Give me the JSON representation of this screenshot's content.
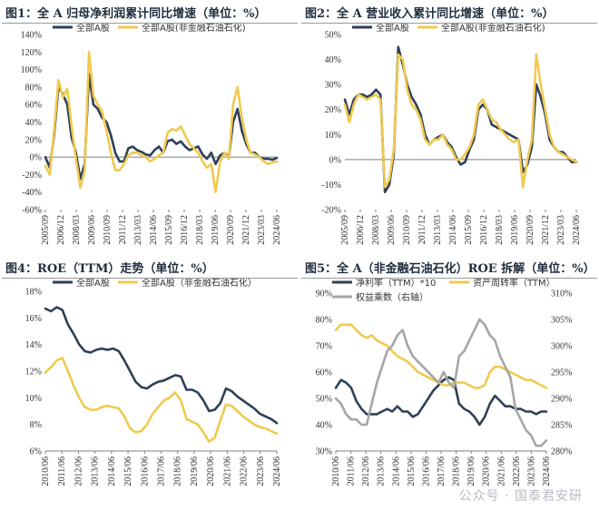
{
  "colors": {
    "dark": "#2e4057",
    "gold": "#f0c94f",
    "gray": "#a6a6a6"
  },
  "watermark": "公众号 · 国泰君安研",
  "charts": [
    {
      "title": "图1：全 A 归母净利润累计同比增速（单位：%）",
      "chart_data": {
        "type": "line",
        "x_ticks": [
          "2005/09",
          "2006/12",
          "2008/03",
          "2009/06",
          "2010/09",
          "2011/12",
          "2013/03",
          "2014/06",
          "2015/09",
          "2016/12",
          "2018/03",
          "2019/06",
          "2020/09",
          "2021/12",
          "2023/03",
          "2024/06"
        ],
        "ylim": [
          -60,
          140
        ],
        "y_ticks": [
          -60,
          -40,
          -20,
          0,
          20,
          40,
          60,
          80,
          100,
          120,
          140
        ],
        "y_format": "percent",
        "series": [
          {
            "name": "全部A股",
            "color": "#2e4057",
            "values": [
              0,
              -12,
              25,
              80,
              72,
              60,
              22,
              5,
              -25,
              -8,
              95,
              60,
              55,
              45,
              40,
              25,
              5,
              -5,
              -5,
              10,
              12,
              8,
              6,
              3,
              2,
              8,
              12,
              5,
              18,
              20,
              15,
              18,
              12,
              8,
              10,
              12,
              3,
              -2,
              5,
              -8,
              2,
              5,
              0,
              40,
              55,
              30,
              15,
              5,
              5,
              0,
              -2,
              -2,
              -3,
              -1
            ]
          },
          {
            "name": "全部A股(非金融石油石化)",
            "color": "#f0c94f",
            "values": [
              -10,
              -20,
              30,
              88,
              68,
              78,
              35,
              -2,
              -35,
              -15,
              120,
              70,
              60,
              52,
              30,
              5,
              -15,
              -15,
              -8,
              2,
              5,
              5,
              2,
              0,
              -5,
              -2,
              2,
              5,
              28,
              32,
              30,
              35,
              25,
              15,
              10,
              5,
              -5,
              -12,
              -8,
              -40,
              -5,
              5,
              -2,
              60,
              80,
              45,
              20,
              5,
              3,
              0,
              -5,
              -8,
              -6,
              -5
            ]
          }
        ]
      }
    },
    {
      "title": "图2：全 A 营业收入累计同比增速（单位：%）",
      "chart_data": {
        "type": "line",
        "x_ticks": [
          "2005/09",
          "2006/12",
          "2008/03",
          "2009/06",
          "2010/09",
          "2011/12",
          "2013/03",
          "2014/06",
          "2015/09",
          "2016/12",
          "2018/03",
          "2019/06",
          "2020/09",
          "2021/12",
          "2023/03",
          "2024/06"
        ],
        "ylim": [
          -20,
          50
        ],
        "y_ticks": [
          -20,
          -10,
          0,
          10,
          20,
          30,
          40,
          50
        ],
        "y_format": "percent",
        "series": [
          {
            "name": "全部A股",
            "color": "#2e4057",
            "values": [
              24,
              18,
              24,
              26,
              26,
              25,
              26,
              28,
              26,
              -13,
              -10,
              2,
              45,
              38,
              30,
              25,
              22,
              18,
              10,
              6,
              8,
              9,
              10,
              7,
              5,
              1,
              -2,
              -1,
              4,
              8,
              20,
              22,
              20,
              14,
              13,
              12,
              11,
              10,
              9,
              8,
              -5,
              -2,
              5,
              30,
              25,
              18,
              8,
              5,
              3,
              3,
              1,
              -1,
              -1
            ]
          },
          {
            "name": "全部A股(非金融石油石化)",
            "color": "#f0c94f",
            "values": [
              22,
              15,
              22,
              26,
              25,
              24,
              25,
              26,
              24,
              -11,
              -8,
              4,
              42,
              40,
              28,
              22,
              20,
              16,
              8,
              6,
              8,
              8,
              10,
              6,
              4,
              0,
              0,
              2,
              5,
              10,
              22,
              24,
              20,
              16,
              15,
              12,
              10,
              8,
              7,
              8,
              -11,
              0,
              8,
              42,
              30,
              20,
              10,
              5,
              3,
              2,
              1,
              0,
              -1
            ]
          }
        ]
      }
    },
    {
      "title": "图4：ROE（TTM）走势（单位：%）",
      "chart_data": {
        "type": "line",
        "x_ticks": [
          "2010/06",
          "2011/06",
          "2012/06",
          "2013/06",
          "2014/06",
          "2015/06",
          "2016/06",
          "2017/06",
          "2018/06",
          "2019/06",
          "2020/06",
          "2021/06",
          "2022/06",
          "2023/06",
          "2024/06"
        ],
        "ylim": [
          6,
          18
        ],
        "y_ticks": [
          6,
          8,
          10,
          12,
          14,
          16,
          18
        ],
        "y_format": "percent",
        "series": [
          {
            "name": "全部A股",
            "color": "#2e4057",
            "values": [
              16.7,
              16.5,
              16.8,
              16.6,
              15.5,
              14.8,
              14.0,
              13.5,
              13.4,
              13.6,
              13.7,
              13.6,
              13.7,
              13.5,
              12.8,
              12.0,
              11.2,
              10.8,
              10.7,
              11.0,
              11.2,
              11.3,
              11.5,
              11.7,
              11.6,
              10.6,
              10.6,
              10.4,
              9.8,
              9.0,
              9.1,
              9.6,
              10.7,
              10.5,
              10.1,
              9.8,
              9.5,
              9.2,
              8.8,
              8.6,
              8.4,
              8.1
            ]
          },
          {
            "name": "全部A股（非金融石油石化）",
            "color": "#f0c94f",
            "values": [
              11.9,
              12.3,
              12.8,
              13.0,
              12.0,
              10.9,
              10.0,
              9.3,
              9.1,
              9.1,
              9.3,
              9.4,
              9.3,
              9.2,
              8.6,
              7.7,
              7.4,
              7.5,
              8.0,
              8.8,
              9.3,
              9.8,
              10.0,
              10.4,
              9.8,
              8.4,
              8.2,
              8.0,
              7.4,
              6.7,
              7.0,
              8.3,
              9.5,
              9.4,
              9.0,
              8.6,
              8.3,
              8.0,
              7.8,
              7.7,
              7.5,
              7.3
            ]
          }
        ]
      }
    },
    {
      "title": "图5：全 A（非金融石油石化）ROE 拆解（单位：%）",
      "chart_data": {
        "type": "line",
        "x_ticks": [
          "2010/06",
          "2011/06",
          "2012/06",
          "2013/06",
          "2014/06",
          "2015/06",
          "2016/06",
          "2017/06",
          "2018/06",
          "2019/06",
          "2020/06",
          "2021/06",
          "2022/06",
          "2023/06",
          "2024/06"
        ],
        "ylim": [
          30,
          90
        ],
        "y_ticks": [
          30,
          40,
          50,
          60,
          70,
          80,
          90
        ],
        "y_format": "percent",
        "y2lim": [
          280,
          310
        ],
        "y2_ticks": [
          280,
          285,
          290,
          295,
          300,
          305,
          310
        ],
        "y2_format": "percent",
        "series": [
          {
            "name": "净利率（TTM）*10",
            "color": "#2e4057",
            "axis": "left",
            "values": [
              54,
              57,
              56,
              54,
              49,
              46,
              44,
              44,
              44,
              45,
              46,
              45,
              47,
              45,
              45,
              43,
              44,
              47,
              50,
              53,
              55,
              57,
              58,
              57,
              48,
              46,
              45,
              43,
              40,
              43,
              48,
              51,
              49,
              47,
              47,
              46,
              46,
              45,
              45,
              44,
              45,
              45
            ]
          },
          {
            "name": "资产周转率（TTM）",
            "color": "#f0c94f",
            "axis": "left",
            "values": [
              76,
              78,
              78,
              78,
              76,
              74,
              73,
              74,
              72,
              71,
              70,
              68,
              66,
              65,
              64,
              62,
              60,
              59,
              58,
              57,
              56,
              55,
              55,
              56,
              56,
              56,
              55,
              54,
              54,
              55,
              60,
              62,
              62,
              61,
              60,
              59,
              58,
              57,
              57,
              56,
              55,
              54
            ]
          },
          {
            "name": "权益乘数（右轴）",
            "color": "#a6a6a6",
            "axis": "right",
            "values": [
              290,
              289,
              287,
              286,
              286,
              285,
              285,
              289,
              293,
              296,
              299,
              300,
              302,
              303,
              300,
              298,
              297,
              296,
              295,
              294,
              293,
              295,
              293,
              292,
              298,
              299,
              301,
              303,
              305,
              304,
              302,
              301,
              298,
              296,
              294,
              288,
              286,
              284,
              283,
              281,
              281,
              282
            ]
          }
        ]
      }
    }
  ]
}
